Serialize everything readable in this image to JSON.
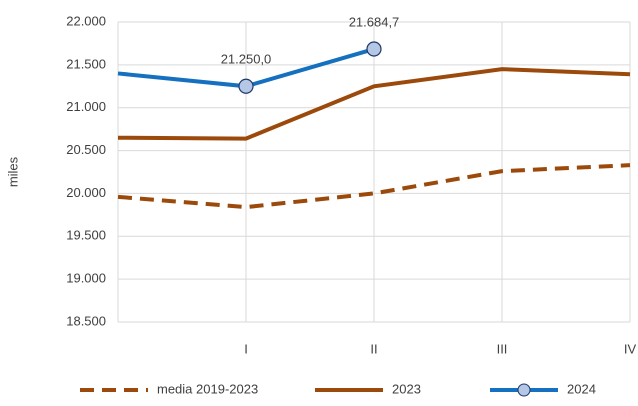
{
  "chart_data": {
    "type": "line",
    "y_label": "miles",
    "categories": [
      null,
      "I",
      "II",
      "III",
      "IV"
    ],
    "series": [
      {
        "name": "media 2019-2023",
        "color": "#9c4a0b",
        "dash": true,
        "values": [
          19960,
          19840,
          20000,
          20260,
          20330
        ]
      },
      {
        "name": "2023",
        "color": "#9c4a0b",
        "values": [
          20650,
          20640,
          21250,
          21450,
          21390
        ]
      },
      {
        "name": "2024",
        "color": "#1570c0",
        "marker": true,
        "values": [
          21400,
          21250.0,
          21684.7,
          null,
          null
        ],
        "value_labels": [
          null,
          "21.250,0",
          "21.684,7",
          null,
          null
        ]
      }
    ],
    "ylim": [
      18500,
      22000
    ],
    "yticks": [
      {
        "value": 18500,
        "label": "18.500"
      },
      {
        "value": 19000,
        "label": "19.000"
      },
      {
        "value": 19500,
        "label": "19.500"
      },
      {
        "value": 20000,
        "label": "20.000"
      },
      {
        "value": 20500,
        "label": "20.500"
      },
      {
        "value": 21000,
        "label": "21.000"
      },
      {
        "value": 21500,
        "label": "21.500"
      },
      {
        "value": 22000,
        "label": "22.000"
      }
    ],
    "grid": true,
    "legend": "bottom"
  }
}
